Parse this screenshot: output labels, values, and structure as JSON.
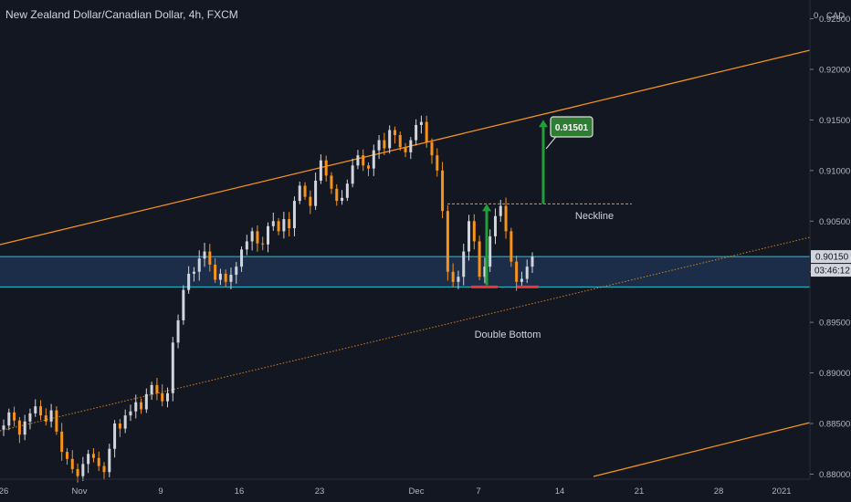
{
  "header": {
    "symbol_title": "New Zealand Dollar/Canadian Dollar, 4h, FXCM",
    "currency_label": "CAD"
  },
  "annotations": {
    "neckline": "Neckline",
    "double_bottom": "Double Bottom",
    "target": "0.91501"
  },
  "price_axis": {
    "current_price": "0.90150",
    "countdown": "03:46:12"
  },
  "colors": {
    "background": "#131722",
    "bull_candle": "#d1d4dc",
    "bear_candle": "#f7931a",
    "channel": "#f7931a",
    "zone_fill": "#1e3150",
    "zone_border": "#26c6da",
    "arrow": "#1f9e3a",
    "double_bottom_marker": "#e53935"
  },
  "chart_data": {
    "type": "candlestick",
    "title": "New Zealand Dollar/Canadian Dollar, 4h, FXCM",
    "timeframe": "4h",
    "ylim": [
      0.8795,
      0.9264
    ],
    "y_ticks": [
      0.88,
      0.885,
      0.89,
      0.895,
      0.9,
      0.905,
      0.91,
      0.915,
      0.92,
      0.925
    ],
    "y_tick_labels": [
      "0.88000",
      "0.88500",
      "0.89000",
      "0.89500",
      "0.90000",
      "0.90500",
      "0.91000",
      "0.91500",
      "0.92000",
      "0.92500"
    ],
    "x_tick_labels": [
      "26",
      "Nov",
      "9",
      "16",
      "23",
      "Dec",
      "7",
      "14",
      "21",
      "28",
      "2021"
    ],
    "current_price": 0.9015,
    "support_zone": [
      0.8985,
      0.9015
    ],
    "neckline_level": 0.9067,
    "target_level": 0.91501,
    "grid": false,
    "series": [
      {
        "values": [
          0.8848,
          0.8861,
          0.8853,
          0.8839,
          0.8852,
          0.886,
          0.8867,
          0.8858,
          0.8852,
          0.8863,
          0.8842,
          0.8822,
          0.8815,
          0.8805,
          0.8798,
          0.881,
          0.882,
          0.8816,
          0.8808,
          0.8802,
          0.8825,
          0.885,
          0.8845,
          0.8858,
          0.8862,
          0.8871,
          0.8864,
          0.8879,
          0.8888,
          0.888,
          0.8872,
          0.888,
          0.893,
          0.8952,
          0.8982,
          0.8998,
          0.9,
          0.9013,
          0.902,
          0.9007,
          0.8992,
          0.8998,
          0.899,
          0.8997,
          0.9005,
          0.9022,
          0.903,
          0.904,
          0.9028,
          0.9027,
          0.9045,
          0.905,
          0.904,
          0.9052,
          0.9043,
          0.907,
          0.9085,
          0.9074,
          0.9065,
          0.909,
          0.911,
          0.9095,
          0.9082,
          0.907,
          0.9073,
          0.9087,
          0.9105,
          0.9115,
          0.9105,
          0.9102,
          0.912,
          0.913,
          0.9122,
          0.914,
          0.9135,
          0.9123,
          0.9118,
          0.913,
          0.9145,
          0.9148,
          0.9128,
          0.9115,
          0.91,
          0.906,
          0.9,
          0.899,
          0.8995,
          0.902,
          0.905,
          0.903,
          0.8995,
          0.9005,
          0.9035,
          0.9055,
          0.9065,
          0.904,
          0.901,
          0.899,
          0.8993,
          0.9005,
          0.9015
        ]
      }
    ],
    "annotations": [
      "Neckline",
      "Double Bottom",
      "0.91501"
    ]
  }
}
